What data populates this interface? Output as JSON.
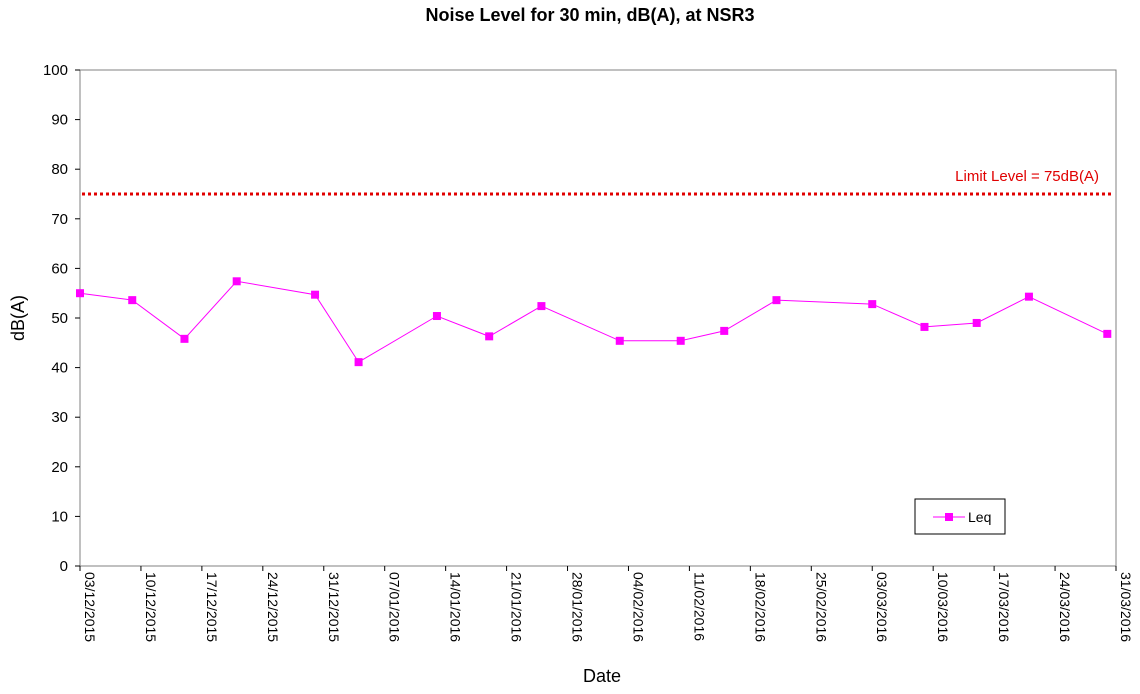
{
  "chart_data": {
    "type": "line",
    "title": "Noise Level for 30 min, dB(A), at NSR3",
    "xlabel": "Date",
    "ylabel": "dB(A)",
    "ylim": [
      0,
      100
    ],
    "yticks": [
      "0",
      "10",
      "20",
      "30",
      "40",
      "50",
      "60",
      "70",
      "80",
      "90",
      "100"
    ],
    "xlim": [
      "2015-12-03",
      "2016-03-31"
    ],
    "xtick_labels": [
      "03/12/2015",
      "10/12/2015",
      "17/12/2015",
      "24/12/2015",
      "31/12/2015",
      "07/01/2016",
      "14/01/2016",
      "21/01/2016",
      "28/01/2016",
      "04/02/2016",
      "11/02/2016",
      "18/02/2016",
      "25/02/2016",
      "03/03/2016",
      "10/03/2016",
      "17/03/2016",
      "24/03/2016",
      "31/03/2016"
    ],
    "grid": false,
    "legend_position": "bottom-right",
    "series": [
      {
        "name": "Leq",
        "color": "#ff00ff",
        "marker": "square",
        "points": [
          {
            "x": "2015-12-03",
            "y": 55.0
          },
          {
            "x": "2015-12-09",
            "y": 53.6
          },
          {
            "x": "2015-12-15",
            "y": 45.8
          },
          {
            "x": "2015-12-21",
            "y": 57.4
          },
          {
            "x": "2015-12-30",
            "y": 54.7
          },
          {
            "x": "2016-01-04",
            "y": 41.1
          },
          {
            "x": "2016-01-13",
            "y": 50.4
          },
          {
            "x": "2016-01-19",
            "y": 46.3
          },
          {
            "x": "2016-01-25",
            "y": 52.4
          },
          {
            "x": "2016-02-03",
            "y": 45.4
          },
          {
            "x": "2016-02-10",
            "y": 45.4
          },
          {
            "x": "2016-02-15",
            "y": 47.4
          },
          {
            "x": "2016-02-21",
            "y": 53.6
          },
          {
            "x": "2016-03-03",
            "y": 52.8
          },
          {
            "x": "2016-03-09",
            "y": 48.2
          },
          {
            "x": "2016-03-15",
            "y": 49.0
          },
          {
            "x": "2016-03-21",
            "y": 54.3
          },
          {
            "x": "2016-03-30",
            "y": 46.8
          }
        ]
      }
    ],
    "limit": {
      "y": 75,
      "label": "Limit Level = 75dB(A)",
      "color": "#e00000"
    }
  }
}
